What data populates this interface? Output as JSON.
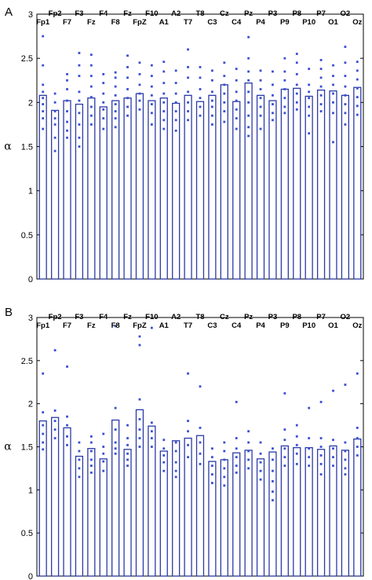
{
  "chart_data": [
    {
      "panel_label": "A",
      "type": "bar",
      "ylabel": "α",
      "ylim": [
        0,
        3
      ],
      "yticks": [
        "0",
        "0.5",
        "1",
        "1.5",
        "2",
        "2.5",
        "3"
      ],
      "categories": [
        "Fp1",
        "Fp2",
        "F7",
        "F3",
        "Fz",
        "F4",
        "F8",
        "Fz",
        "FpZ",
        "F10",
        "A1",
        "A2",
        "T7",
        "T8",
        "C3",
        "Cz",
        "C4",
        "Pz",
        "P4",
        "P3",
        "P9",
        "P8",
        "P10",
        "P7",
        "O1",
        "O2",
        "Oz"
      ],
      "values": [
        2.08,
        1.91,
        2.02,
        1.98,
        2.05,
        1.95,
        2.02,
        2.05,
        2.1,
        2.02,
        2.05,
        1.99,
        2.08,
        2.01,
        2.08,
        2.2,
        2.01,
        2.22,
        2.08,
        2.02,
        2.15,
        2.16,
        2.07,
        2.14,
        2.13,
        2.08,
        2.17
      ],
      "points": [
        [
          2.75,
          2.42,
          2.2,
          2.12,
          2.05,
          1.98,
          1.9,
          1.82,
          1.7
        ],
        [
          2.1,
          2.0,
          1.9,
          1.82,
          1.75,
          1.6,
          1.45
        ],
        [
          2.32,
          2.25,
          2.15,
          2.02,
          1.9,
          1.78,
          1.68,
          1.6
        ],
        [
          2.56,
          2.42,
          2.3,
          2.12,
          2.02,
          1.88,
          1.75,
          1.6,
          1.5
        ],
        [
          2.54,
          2.42,
          2.3,
          2.18,
          2.06,
          1.95,
          1.85,
          1.75
        ],
        [
          2.32,
          2.22,
          2.1,
          2.0,
          1.92,
          1.82,
          1.7
        ],
        [
          2.34,
          2.28,
          2.18,
          2.08,
          1.98,
          1.9,
          1.82,
          1.72
        ],
        [
          2.53,
          2.4,
          2.28,
          2.15,
          2.05,
          1.95,
          1.85
        ],
        [
          2.45,
          2.32,
          2.2,
          2.1,
          2.02,
          1.92
        ],
        [
          2.42,
          2.3,
          2.18,
          2.08,
          1.98,
          1.88,
          1.75
        ],
        [
          2.46,
          2.35,
          2.22,
          2.1,
          2.0,
          1.9,
          1.8,
          1.7
        ],
        [
          2.36,
          2.22,
          2.1,
          2.0,
          1.9,
          1.8,
          1.68
        ],
        [
          2.6,
          2.4,
          2.28,
          2.12,
          2.0,
          1.9,
          1.8
        ],
        [
          2.4,
          2.28,
          2.15,
          2.05,
          1.95,
          1.85
        ],
        [
          2.36,
          2.25,
          2.12,
          2.02,
          1.95,
          1.85,
          1.75
        ],
        [
          2.45,
          2.3,
          2.2,
          2.1,
          2.0,
          1.9,
          1.78
        ],
        [
          2.38,
          2.25,
          2.12,
          2.02,
          1.92,
          1.82,
          1.7
        ],
        [
          2.74,
          2.5,
          2.35,
          2.25,
          2.12,
          2.0,
          1.85,
          1.72,
          1.62
        ],
        [
          2.36,
          2.25,
          2.15,
          2.05,
          1.95,
          1.85,
          1.7
        ],
        [
          2.35,
          2.2,
          2.08,
          1.98,
          1.88,
          1.8
        ],
        [
          2.5,
          2.35,
          2.25,
          2.15,
          2.05,
          1.95,
          1.88
        ],
        [
          2.55,
          2.45,
          2.32,
          2.2,
          2.1,
          2.0,
          1.92
        ],
        [
          2.38,
          2.2,
          2.12,
          2.05,
          1.95,
          1.85,
          1.65
        ],
        [
          2.48,
          2.38,
          2.28,
          2.18,
          2.08,
          1.98,
          1.9
        ],
        [
          2.42,
          2.3,
          2.2,
          2.1,
          2.0,
          1.88,
          1.55
        ],
        [
          2.63,
          2.45,
          2.3,
          2.18,
          2.08,
          1.98,
          1.88,
          1.75
        ],
        [
          2.46,
          2.36,
          2.26,
          2.16,
          2.06,
          1.96,
          1.86
        ]
      ]
    },
    {
      "panel_label": "B",
      "type": "bar",
      "ylabel": "α",
      "ylim": [
        0,
        3
      ],
      "yticks": [
        "0",
        "0.5",
        "1",
        "1.5",
        "2",
        "2.5",
        "3"
      ],
      "categories": [
        "Fp1",
        "Fp2",
        "F7",
        "F3",
        "Fz",
        "F4",
        "F8",
        "Fz",
        "FpZ",
        "F10",
        "A1",
        "A2",
        "T7",
        "T8",
        "C3",
        "Cz",
        "C4",
        "Pz",
        "P4",
        "P3",
        "P9",
        "P8",
        "P10",
        "P7",
        "O1",
        "O2",
        "Oz"
      ],
      "values": [
        1.8,
        1.84,
        1.72,
        1.39,
        1.48,
        1.36,
        1.81,
        1.47,
        1.93,
        1.74,
        1.45,
        1.57,
        1.6,
        1.63,
        1.33,
        1.35,
        1.43,
        1.46,
        1.36,
        1.44,
        1.51,
        1.49,
        1.49,
        1.47,
        1.51,
        1.46,
        1.59
      ],
      "points": [
        [
          2.35,
          1.9,
          1.75,
          1.65,
          1.55,
          1.47
        ],
        [
          2.62,
          1.92,
          1.8,
          1.7,
          1.6
        ],
        [
          2.43,
          1.85,
          1.75,
          1.62,
          1.52
        ],
        [
          1.55,
          1.45,
          1.35,
          1.25,
          1.15
        ],
        [
          1.62,
          1.55,
          1.45,
          1.35,
          1.28,
          1.2
        ],
        [
          1.65,
          1.5,
          1.42,
          1.33,
          1.22
        ],
        [
          2.9,
          1.95,
          1.7,
          1.55,
          1.48,
          1.42
        ],
        [
          1.75,
          1.6,
          1.52,
          1.42,
          1.35,
          1.28
        ],
        [
          2.78,
          2.68,
          2.05,
          1.82,
          1.7,
          1.6,
          1.5
        ],
        [
          2.88,
          1.78,
          1.68,
          1.6,
          1.5
        ],
        [
          1.58,
          1.48,
          1.4,
          1.32,
          1.22
        ],
        [
          1.55,
          1.45,
          1.32,
          1.22,
          1.15
        ],
        [
          2.35,
          1.8,
          1.68,
          1.52,
          1.38
        ],
        [
          2.2,
          1.72,
          1.55,
          1.42,
          1.3
        ],
        [
          1.48,
          1.38,
          1.28,
          1.18,
          1.08
        ],
        [
          1.55,
          1.45,
          1.35,
          1.25,
          1.15,
          1.05
        ],
        [
          2.02,
          1.6,
          1.48,
          1.38,
          1.28,
          1.2
        ],
        [
          1.68,
          1.55,
          1.45,
          1.35,
          1.25
        ],
        [
          1.55,
          1.42,
          1.32,
          1.22,
          1.12
        ],
        [
          1.48,
          1.35,
          1.22,
          1.1,
          0.98,
          0.88
        ],
        [
          2.12,
          1.7,
          1.58,
          1.48,
          1.38,
          1.28
        ],
        [
          1.75,
          1.62,
          1.52,
          1.42,
          1.3
        ],
        [
          1.95,
          1.6,
          1.48,
          1.38,
          1.28
        ],
        [
          2.02,
          1.6,
          1.5,
          1.4,
          1.3,
          1.18
        ],
        [
          2.15,
          1.58,
          1.48,
          1.38,
          1.28
        ],
        [
          2.22,
          1.55,
          1.45,
          1.35,
          1.25,
          1.18
        ],
        [
          2.35,
          1.72,
          1.6,
          1.5,
          1.4
        ]
      ]
    }
  ],
  "colors": {
    "bar": "#2b3aa6",
    "point": "#3a4fd0",
    "axis": "#000000"
  }
}
